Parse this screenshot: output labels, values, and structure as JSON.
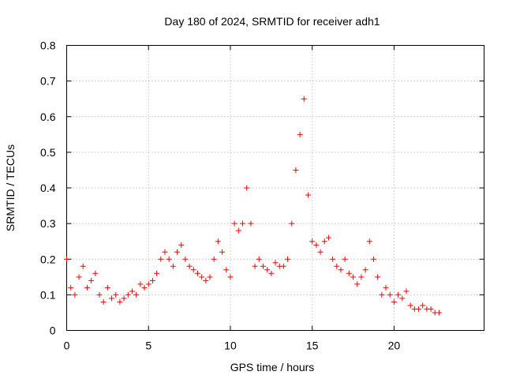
{
  "chart_data": {
    "type": "scatter",
    "title": "Day 180 of 2024, SRMTID for receiver adh1",
    "xlabel": "GPS time / hours",
    "ylabel": "SRMTID / TECUs",
    "xlim": [
      0,
      25.5
    ],
    "ylim": [
      0,
      0.8
    ],
    "xticks": [
      0,
      5,
      10,
      15,
      20
    ],
    "xtick_labels": [
      "0",
      "5",
      "10",
      "15",
      "20"
    ],
    "yticks": [
      0,
      0.1,
      0.2,
      0.3,
      0.4,
      0.5,
      0.6,
      0.7,
      0.8
    ],
    "ytick_labels": [
      "0",
      "0.1",
      "0.2",
      "0.3",
      "0.4",
      "0.5",
      "0.6",
      "0.7",
      "0.8"
    ],
    "grid": true,
    "marker": "plus",
    "color": "#ff0000",
    "series": [
      {
        "name": "SRMTID",
        "x": [
          0.0,
          0.25,
          0.5,
          0.75,
          1.0,
          1.25,
          1.5,
          1.75,
          2.0,
          2.25,
          2.5,
          2.75,
          3.0,
          3.25,
          3.5,
          3.75,
          4.0,
          4.25,
          4.5,
          4.75,
          5.0,
          5.25,
          5.5,
          5.75,
          6.0,
          6.25,
          6.5,
          6.75,
          7.0,
          7.25,
          7.5,
          7.75,
          8.0,
          8.25,
          8.5,
          8.75,
          9.0,
          9.25,
          9.5,
          9.75,
          10.0,
          10.25,
          10.5,
          10.75,
          11.0,
          11.25,
          11.5,
          11.75,
          12.0,
          12.25,
          12.5,
          12.75,
          13.0,
          13.25,
          13.5,
          13.75,
          14.0,
          14.25,
          14.5,
          14.75,
          15.0,
          15.25,
          15.5,
          15.75,
          16.0,
          16.25,
          16.5,
          16.75,
          17.0,
          17.25,
          17.5,
          17.75,
          18.0,
          18.25,
          18.5,
          18.75,
          19.0,
          19.25,
          19.5,
          19.75,
          20.0,
          20.25,
          20.5,
          20.75,
          21.0,
          21.25,
          21.5,
          21.75,
          22.0,
          22.25,
          22.5,
          22.75
        ],
        "y": [
          0.2,
          0.12,
          0.1,
          0.15,
          0.18,
          0.12,
          0.14,
          0.16,
          0.1,
          0.08,
          0.12,
          0.09,
          0.1,
          0.08,
          0.09,
          0.1,
          0.11,
          0.1,
          0.13,
          0.12,
          0.13,
          0.14,
          0.16,
          0.2,
          0.22,
          0.2,
          0.18,
          0.22,
          0.24,
          0.2,
          0.18,
          0.17,
          0.16,
          0.15,
          0.14,
          0.15,
          0.2,
          0.25,
          0.22,
          0.17,
          0.15,
          0.3,
          0.28,
          0.3,
          0.4,
          0.3,
          0.18,
          0.2,
          0.18,
          0.17,
          0.16,
          0.19,
          0.18,
          0.18,
          0.2,
          0.3,
          0.45,
          0.55,
          0.65,
          0.38,
          0.25,
          0.24,
          0.22,
          0.25,
          0.26,
          0.2,
          0.18,
          0.17,
          0.2,
          0.16,
          0.15,
          0.13,
          0.15,
          0.17,
          0.25,
          0.2,
          0.15,
          0.1,
          0.12,
          0.1,
          0.08,
          0.1,
          0.09,
          0.11,
          0.07,
          0.06,
          0.06,
          0.07,
          0.06,
          0.06,
          0.05,
          0.05
        ]
      }
    ]
  }
}
